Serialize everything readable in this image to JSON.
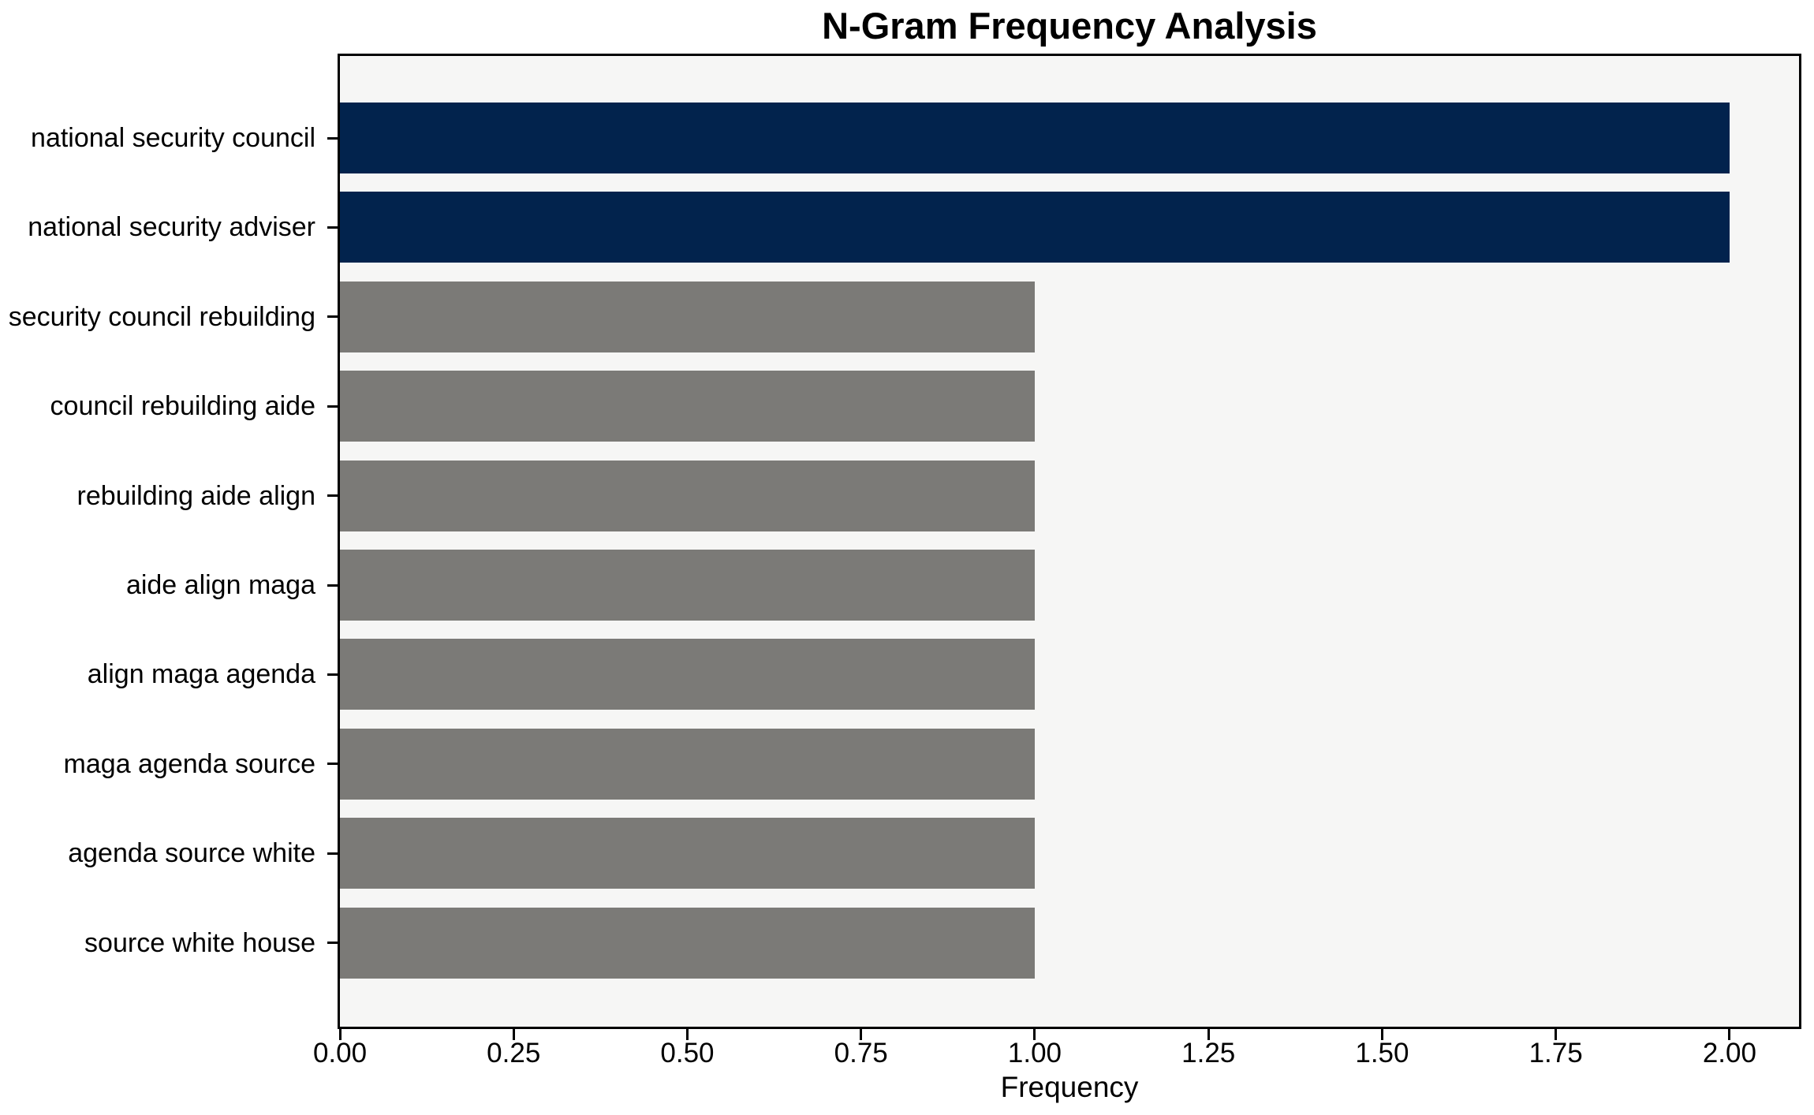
{
  "chart_data": {
    "type": "bar",
    "orientation": "horizontal",
    "title": "N-Gram Frequency Analysis",
    "xlabel": "Frequency",
    "ylabel": "",
    "categories": [
      "national security council",
      "national security adviser",
      "security council rebuilding",
      "council rebuilding aide",
      "rebuilding aide align",
      "aide align maga",
      "align maga agenda",
      "maga agenda source",
      "agenda source white",
      "source white house"
    ],
    "values": [
      2,
      2,
      1,
      1,
      1,
      1,
      1,
      1,
      1,
      1
    ],
    "bar_colors": [
      "#02234d",
      "#02234d",
      "#7b7a77",
      "#7b7a77",
      "#7b7a77",
      "#7b7a77",
      "#7b7a77",
      "#7b7a77",
      "#7b7a77",
      "#7b7a77"
    ],
    "xlim": [
      0,
      2.1
    ],
    "xtick_values": [
      0.0,
      0.25,
      0.5,
      0.75,
      1.0,
      1.25,
      1.5,
      1.75,
      2.0
    ],
    "xtick_labels": [
      "0.00",
      "0.25",
      "0.50",
      "0.75",
      "1.00",
      "1.25",
      "1.50",
      "1.75",
      "2.00"
    ],
    "grid": false,
    "legend": "none",
    "plot_background": "#f6f6f5",
    "figure_background": "#ffffff",
    "highlight_color": "#02234d",
    "default_bar_color": "#7b7a77"
  }
}
